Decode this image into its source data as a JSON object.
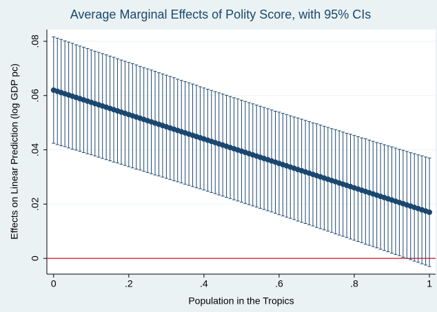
{
  "chart_data": {
    "type": "errorbar",
    "title": "Average Marginal Effects of Polity Score, with 95% CIs",
    "x_label": "Population in the Tropics",
    "y_label": "Effects on Linear Prediction (log GDP pc)",
    "x": [
      0,
      0.01,
      0.02,
      0.03,
      0.04,
      0.05,
      0.06,
      0.07,
      0.08,
      0.09,
      0.1,
      0.11,
      0.12,
      0.13,
      0.14,
      0.15,
      0.16,
      0.17,
      0.18,
      0.19,
      0.2,
      0.21,
      0.22,
      0.23,
      0.24,
      0.25,
      0.26,
      0.27,
      0.28,
      0.29,
      0.3,
      0.31,
      0.32,
      0.33,
      0.34,
      0.35,
      0.36,
      0.37,
      0.38,
      0.39,
      0.4,
      0.41,
      0.42,
      0.43,
      0.44,
      0.45,
      0.46,
      0.47,
      0.48,
      0.49,
      0.5,
      0.51,
      0.52,
      0.53,
      0.54,
      0.55,
      0.56,
      0.57,
      0.58,
      0.59,
      0.6,
      0.61,
      0.62,
      0.63,
      0.64,
      0.65,
      0.66,
      0.67,
      0.68,
      0.69,
      0.7,
      0.71,
      0.72,
      0.73,
      0.74,
      0.75,
      0.76,
      0.77,
      0.78,
      0.79,
      0.8,
      0.81,
      0.82,
      0.83,
      0.84,
      0.85,
      0.86,
      0.87,
      0.88,
      0.89,
      0.9,
      0.91,
      0.92,
      0.93,
      0.94,
      0.95,
      0.96,
      0.97,
      0.98,
      0.99,
      1
    ],
    "values": [
      0.062,
      0.06155,
      0.0611,
      0.06065,
      0.0602,
      0.05975,
      0.0593,
      0.05885,
      0.0584,
      0.05795,
      0.0575,
      0.05705,
      0.0566,
      0.05615,
      0.0557,
      0.05525,
      0.0548,
      0.05435,
      0.0539,
      0.05345,
      0.053,
      0.05255,
      0.0521,
      0.05165,
      0.0512,
      0.05075,
      0.0503,
      0.04985,
      0.0494,
      0.04895,
      0.0485,
      0.04805,
      0.0476,
      0.04715,
      0.0467,
      0.04625,
      0.0458,
      0.04535,
      0.0449,
      0.04445,
      0.044,
      0.04355,
      0.0431,
      0.04265,
      0.0422,
      0.04175,
      0.0413,
      0.04085,
      0.0404,
      0.03995,
      0.0395,
      0.03905,
      0.0386,
      0.03815,
      0.0377,
      0.03725,
      0.0368,
      0.03635,
      0.0359,
      0.03545,
      0.035,
      0.03455,
      0.0341,
      0.03365,
      0.0332,
      0.03275,
      0.0323,
      0.03185,
      0.0314,
      0.03095,
      0.0305,
      0.03005,
      0.0296,
      0.02915,
      0.0287,
      0.02825,
      0.0278,
      0.02735,
      0.0269,
      0.02645,
      0.026,
      0.02555,
      0.0251,
      0.02465,
      0.0242,
      0.02375,
      0.0233,
      0.02285,
      0.0224,
      0.02195,
      0.0215,
      0.02105,
      0.0206,
      0.02015,
      0.0197,
      0.01925,
      0.0188,
      0.01835,
      0.0179,
      0.01745,
      0.017
    ],
    "ci_low": [
      0.0424,
      0.04195,
      0.0415,
      0.04115,
      0.0407,
      0.04025,
      0.0399,
      0.03945,
      0.039,
      0.03855,
      0.0382,
      0.03775,
      0.0373,
      0.03685,
      0.0364,
      0.03595,
      0.0355,
      0.03515,
      0.0347,
      0.03425,
      0.0338,
      0.03335,
      0.0329,
      0.03255,
      0.0321,
      0.03165,
      0.0312,
      0.03075,
      0.0304,
      0.02995,
      0.0295,
      0.02905,
      0.0286,
      0.02825,
      0.0278,
      0.02735,
      0.0269,
      0.02645,
      0.026,
      0.02565,
      0.0252,
      0.02475,
      0.0243,
      0.02385,
      0.0234,
      0.02295,
      0.0225,
      0.02205,
      0.0216,
      0.02115,
      0.0207,
      0.02025,
      0.0198,
      0.01935,
      0.0189,
      0.01845,
      0.018,
      0.01755,
      0.0171,
      0.01665,
      0.0161,
      0.01565,
      0.0152,
      0.01475,
      0.0143,
      0.01375,
      0.0133,
      0.01285,
      0.0124,
      0.01195,
      0.0114,
      0.01095,
      0.0105,
      0.01005,
      0.0096,
      0.00905,
      0.0086,
      0.00815,
      0.0077,
      0.00715,
      0.0067,
      0.00625,
      0.0058,
      0.00525,
      0.0048,
      0.00435,
      0.0039,
      0.00335,
      0.0029,
      0.00245,
      0.0019,
      0.00145,
      0.001,
      0.00045,
      0,
      -0.00045,
      -0.001,
      -0.00145,
      -0.002,
      -0.00245,
      -0.003
    ],
    "ci_high": [
      0.0816,
      0.08115,
      0.0807,
      0.08015,
      0.0797,
      0.07925,
      0.0787,
      0.07825,
      0.0778,
      0.07735,
      0.0768,
      0.07635,
      0.0759,
      0.07545,
      0.075,
      0.07455,
      0.0741,
      0.07355,
      0.0731,
      0.07265,
      0.0722,
      0.07175,
      0.0713,
      0.07075,
      0.0703,
      0.06985,
      0.0694,
      0.06895,
      0.0684,
      0.06795,
      0.0675,
      0.06705,
      0.0666,
      0.06605,
      0.0656,
      0.06515,
      0.0647,
      0.06425,
      0.0638,
      0.06325,
      0.0628,
      0.06235,
      0.0619,
      0.06145,
      0.061,
      0.06055,
      0.0601,
      0.05965,
      0.0592,
      0.05875,
      0.0583,
      0.05785,
      0.0574,
      0.05695,
      0.0565,
      0.05605,
      0.0556,
      0.05515,
      0.0547,
      0.05425,
      0.0539,
      0.05345,
      0.053,
      0.05255,
      0.0521,
      0.05175,
      0.0513,
      0.05085,
      0.0504,
      0.04995,
      0.0496,
      0.04915,
      0.0487,
      0.04825,
      0.0478,
      0.04745,
      0.047,
      0.04655,
      0.0461,
      0.04575,
      0.0453,
      0.04485,
      0.0444,
      0.04405,
      0.0436,
      0.04315,
      0.0427,
      0.04235,
      0.0419,
      0.04145,
      0.0411,
      0.04065,
      0.0402,
      0.03985,
      0.0394,
      0.03895,
      0.0386,
      0.03815,
      0.0378,
      0.03735,
      0.037
    ],
    "color": "#1a476f",
    "xlim": [
      -0.018,
      1.0165
    ],
    "ylim": [
      -0.0058,
      0.0843
    ],
    "xticks": [
      0,
      {
        "value": 0.2,
        "label": ".2"
      },
      {
        "value": 0.4,
        "label": ".4"
      },
      {
        "value": 0.6,
        "label": ".6"
      },
      {
        "value": 0.8,
        "label": ".8"
      },
      1
    ],
    "yticks": [
      0,
      {
        "value": 0.02,
        "label": ".02"
      },
      {
        "value": 0.04,
        "label": ".04"
      },
      {
        "value": 0.06,
        "label": ".06"
      },
      {
        "value": 0.08,
        "label": ".08"
      }
    ],
    "grid": true,
    "reference_line": {
      "value": 0,
      "color": "#d4101c"
    }
  }
}
